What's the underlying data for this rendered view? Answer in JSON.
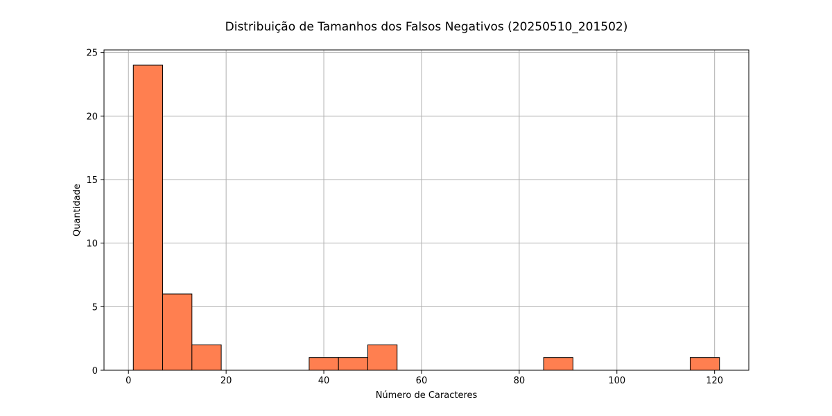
{
  "chart_data": {
    "type": "bar",
    "title": "Distribuição de Tamanhos dos Falsos Negativos (20250510_201502)",
    "xlabel": "Número de Caracteres",
    "ylabel": "Quantidade",
    "xlim": [
      -5,
      127
    ],
    "ylim": [
      0,
      25.2
    ],
    "xticks": [
      0,
      20,
      40,
      60,
      80,
      100,
      120
    ],
    "yticks": [
      0,
      5,
      10,
      15,
      20,
      25
    ],
    "grid": true,
    "bar_color": "#ff7f50",
    "edge_color": "#000000",
    "bins": [
      {
        "x0": 1,
        "x1": 7,
        "count": 24
      },
      {
        "x0": 7,
        "x1": 13,
        "count": 6
      },
      {
        "x0": 13,
        "x1": 19,
        "count": 2
      },
      {
        "x0": 19,
        "x1": 25,
        "count": 0
      },
      {
        "x0": 25,
        "x1": 31,
        "count": 0
      },
      {
        "x0": 31,
        "x1": 37,
        "count": 0
      },
      {
        "x0": 37,
        "x1": 43,
        "count": 1
      },
      {
        "x0": 43,
        "x1": 49,
        "count": 1
      },
      {
        "x0": 49,
        "x1": 55,
        "count": 2
      },
      {
        "x0": 55,
        "x1": 61,
        "count": 0
      },
      {
        "x0": 61,
        "x1": 67,
        "count": 0
      },
      {
        "x0": 67,
        "x1": 73,
        "count": 0
      },
      {
        "x0": 73,
        "x1": 79,
        "count": 0
      },
      {
        "x0": 79,
        "x1": 85,
        "count": 0
      },
      {
        "x0": 85,
        "x1": 91,
        "count": 1
      },
      {
        "x0": 91,
        "x1": 97,
        "count": 0
      },
      {
        "x0": 97,
        "x1": 103,
        "count": 0
      },
      {
        "x0": 103,
        "x1": 109,
        "count": 0
      },
      {
        "x0": 109,
        "x1": 115,
        "count": 0
      },
      {
        "x0": 115,
        "x1": 121,
        "count": 1
      }
    ]
  }
}
